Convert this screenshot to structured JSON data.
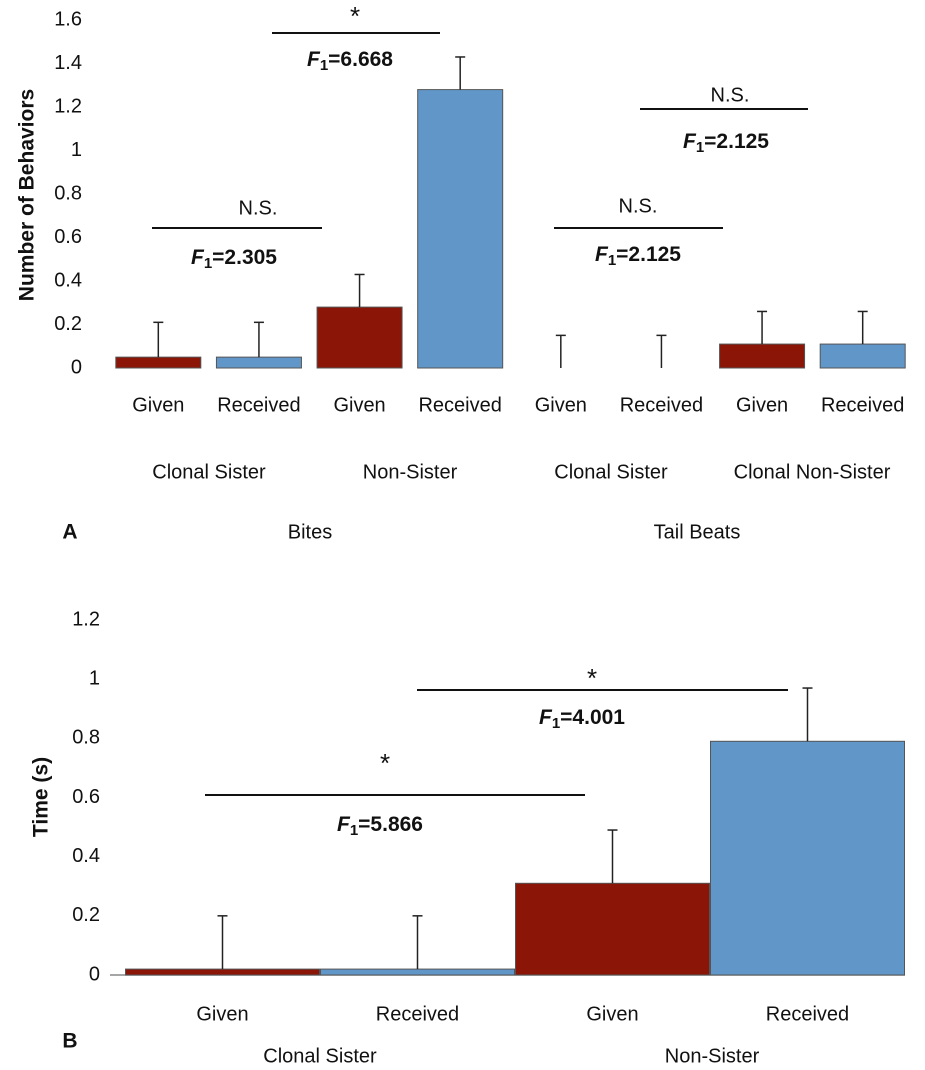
{
  "chart_data": [
    {
      "type": "bar",
      "panel_label": "A",
      "ylabel": "Number of Behaviors",
      "categories": [
        "Given",
        "Received",
        "Given",
        "Received",
        "Given",
        "Received",
        "Given",
        "Received"
      ],
      "groups": [
        "Clonal Sister",
        "Non-Sister",
        "Clonal Sister",
        "Clonal Non-Sister"
      ],
      "supergroups": [
        "Bites",
        "Tail Beats"
      ],
      "values": [
        0.05,
        0.05,
        0.28,
        1.28,
        0,
        0,
        0.11,
        0.11
      ],
      "errors": [
        0.16,
        0.16,
        0.15,
        0.15,
        0.15,
        0.15,
        0.15,
        0.15
      ],
      "colors": [
        "#8b1506",
        "#6196c9",
        "#8b1506",
        "#6196c9",
        "#8b1506",
        "#6196c9",
        "#8b1506",
        "#6196c9"
      ],
      "ylim": [
        0,
        1.6
      ],
      "yticks": [
        0,
        0.2,
        0.4,
        0.6,
        0.8,
        1,
        1.2,
        1.4,
        1.6
      ],
      "annotations": [
        {
          "label": "N.S.",
          "stat_symbol": "F",
          "stat_subscript": "1",
          "stat_value": "=2.305"
        },
        {
          "label": "*",
          "stat_symbol": "F",
          "stat_subscript": "1",
          "stat_value": "=6.668"
        },
        {
          "label": "N.S.",
          "stat_symbol": "F",
          "stat_subscript": "1",
          "stat_value": "=2.125"
        },
        {
          "label": "N.S.",
          "stat_symbol": "F",
          "stat_subscript": "1",
          "stat_value": "=2.125"
        }
      ]
    },
    {
      "type": "bar",
      "panel_label": "B",
      "ylabel": "Time (s)",
      "categories": [
        "Given",
        "Received",
        "Given",
        "Received"
      ],
      "groups": [
        "Clonal Sister",
        "Non-Sister"
      ],
      "values": [
        0.02,
        0.02,
        0.31,
        0.79
      ],
      "errors": [
        0.18,
        0.18,
        0.18,
        0.18
      ],
      "colors": [
        "#8b1506",
        "#6196c9",
        "#8b1506",
        "#6196c9"
      ],
      "ylim": [
        0,
        1.2
      ],
      "yticks": [
        0,
        0.2,
        0.4,
        0.6,
        0.8,
        1,
        1.2
      ],
      "annotations": [
        {
          "label": "*",
          "stat_symbol": "F",
          "stat_subscript": "1",
          "stat_value": "=5.866"
        },
        {
          "label": "*",
          "stat_symbol": "F",
          "stat_subscript": "1",
          "stat_value": "=4.001"
        }
      ]
    }
  ]
}
